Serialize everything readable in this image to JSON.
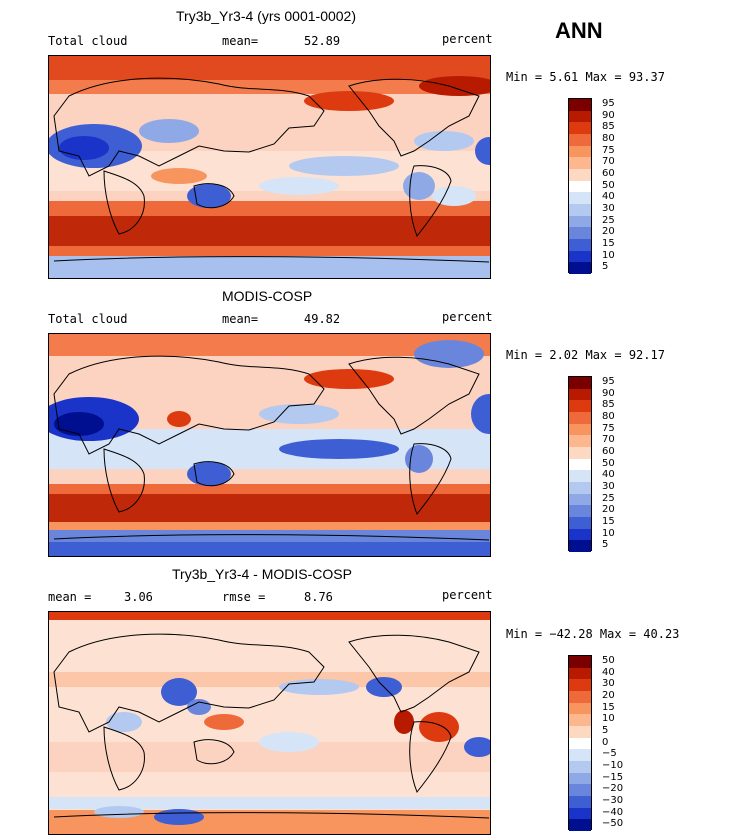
{
  "season": "ANN",
  "panels": [
    {
      "id": "model",
      "title": "Try3b_Yr3-4 (yrs 0001-0002)",
      "left_label": "Total cloud",
      "center_label": "mean=",
      "center_value": "52.89",
      "units": "percent",
      "minmax": "Min =    5.61  Max =   93.37",
      "colorbar_levels": [
        "95",
        "90",
        "85",
        "80",
        "75",
        "70",
        "60",
        "50",
        "40",
        "30",
        "25",
        "20",
        "15",
        "10",
        "5"
      ]
    },
    {
      "id": "obs",
      "title": "MODIS-COSP",
      "left_label": "Total cloud",
      "center_label": "mean=",
      "center_value": "49.82",
      "units": "percent",
      "minmax": "Min =    2.02  Max =   92.17",
      "colorbar_levels": [
        "95",
        "90",
        "85",
        "80",
        "75",
        "70",
        "60",
        "50",
        "40",
        "30",
        "25",
        "20",
        "15",
        "10",
        "5"
      ]
    },
    {
      "id": "diff",
      "title": "Try3b_Yr3-4 - MODIS-COSP",
      "left_label": "mean =",
      "left_value": "3.06",
      "center_label": "rmse =",
      "center_value": "8.76",
      "units": "percent",
      "minmax": "Min = −42.28  Max =   40.23",
      "colorbar_levels": [
        "50",
        "40",
        "30",
        "20",
        "15",
        "10",
        "5",
        "0",
        "−5",
        "−10",
        "−15",
        "−20",
        "−30",
        "−40",
        "−50"
      ]
    }
  ],
  "chart_data": [
    {
      "type": "heatmap",
      "title": "Try3b_Yr3-4 (yrs 0001-0002)",
      "variable": "Total cloud",
      "units": "percent",
      "mean": 52.89,
      "min": 5.61,
      "max": 93.37,
      "levels": [
        5,
        10,
        15,
        20,
        25,
        30,
        40,
        50,
        60,
        70,
        75,
        80,
        85,
        90,
        95
      ]
    },
    {
      "type": "heatmap",
      "title": "MODIS-COSP",
      "variable": "Total cloud",
      "units": "percent",
      "mean": 49.82,
      "min": 2.02,
      "max": 92.17,
      "levels": [
        5,
        10,
        15,
        20,
        25,
        30,
        40,
        50,
        60,
        70,
        75,
        80,
        85,
        90,
        95
      ]
    },
    {
      "type": "heatmap",
      "title": "Try3b_Yr3-4 - MODIS-COSP",
      "units": "percent",
      "mean": 3.06,
      "rmse": 8.76,
      "min": -42.28,
      "max": 40.23,
      "levels": [
        -50,
        -40,
        -30,
        -20,
        -15,
        -10,
        -5,
        0,
        5,
        10,
        15,
        20,
        30,
        40,
        50
      ]
    }
  ],
  "colors": {
    "abs_scale": [
      "#7a0000",
      "#b81a00",
      "#de3a10",
      "#ef6a3a",
      "#f8945e",
      "#fcb78e",
      "#fdd9c2",
      "#ffffff",
      "#d6e4f7",
      "#b3c9ef",
      "#8fa9e6",
      "#6a86dc",
      "#3e5ed4",
      "#1a33c9",
      "#000f8f"
    ],
    "diff_scale": [
      "#7a0000",
      "#b81a00",
      "#de3a10",
      "#ef6a3a",
      "#f8945e",
      "#fcb78e",
      "#fdd9c2",
      "#ffffff",
      "#d6e4f7",
      "#b3c9ef",
      "#8fa9e6",
      "#6a86dc",
      "#3e5ed4",
      "#1a33c9",
      "#000f8f"
    ]
  }
}
